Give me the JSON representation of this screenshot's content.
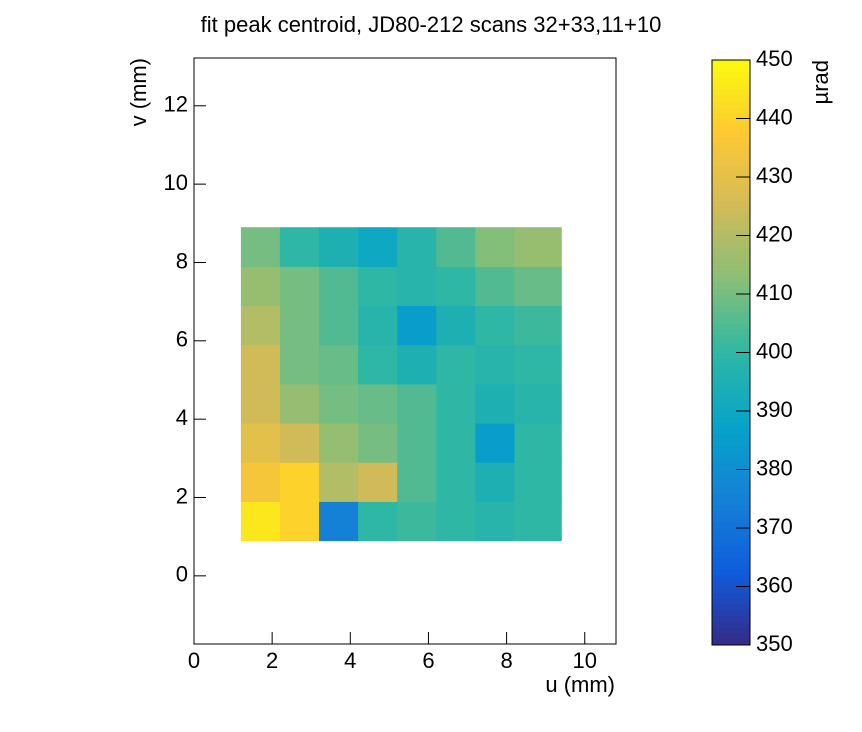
{
  "chart_data": {
    "type": "heatmap",
    "title": "fit peak centroid, JD80-212 scans 32+33,11+10",
    "xlabel": "u (mm)",
    "ylabel": "v (mm)",
    "zlabel": "µrad",
    "xlim": [
      0,
      10.8
    ],
    "xticks": [
      0,
      2,
      4,
      6,
      8,
      10
    ],
    "ylim": [
      -1.74,
      13.22
    ],
    "yticks": [
      0,
      2,
      4,
      6,
      8,
      10,
      12
    ],
    "zlim": [
      350,
      450
    ],
    "zticks": [
      350,
      360,
      370,
      380,
      390,
      400,
      410,
      420,
      430,
      440,
      450
    ],
    "colormap": [
      "#352a87",
      "#0f5cdd",
      "#1481d6",
      "#06a4ca",
      "#2eb7a4",
      "#87bf77",
      "#d1bb59",
      "#fec832",
      "#f9fb0e"
    ],
    "xbins": [
      1.2,
      2.2,
      3.2,
      4.2,
      5.2,
      6.2,
      7.2,
      8.2,
      9.4
    ],
    "ybins": [
      0.9,
      1.9,
      2.9,
      3.9,
      4.9,
      5.9,
      6.9,
      7.9,
      8.9
    ],
    "z": [
      [
        445,
        440,
        375,
        400,
        402,
        400,
        398,
        400
      ],
      [
        435,
        440,
        420,
        425,
        405,
        400,
        395,
        400
      ],
      [
        430,
        425,
        415,
        410,
        405,
        400,
        385,
        400
      ],
      [
        425,
        415,
        410,
        408,
        405,
        400,
        395,
        398
      ],
      [
        425,
        410,
        408,
        400,
        395,
        400,
        398,
        400
      ],
      [
        420,
        410,
        405,
        398,
        385,
        395,
        400,
        402
      ],
      [
        415,
        410,
        405,
        400,
        398,
        400,
        405,
        408
      ],
      [
        410,
        400,
        395,
        390,
        398,
        405,
        412,
        415
      ]
    ]
  }
}
